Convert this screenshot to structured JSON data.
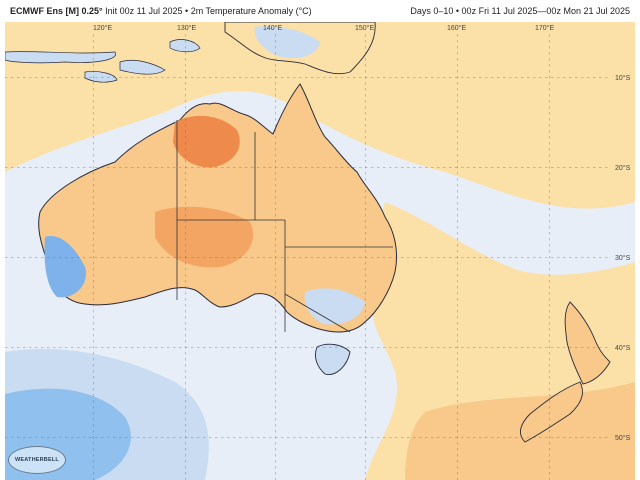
{
  "header": {
    "model": "ECMWF Ens [M] 0.25°",
    "init": "Init 00z 11 Jul 2025",
    "field": "2m Temperature Anomaly (°C)",
    "range": "Days 0–10 • 00z Fri 11 Jul 2025—00z Mon 21 Jul 2025"
  },
  "map": {
    "lon_labels": [
      "120°E",
      "130°E",
      "140°E",
      "150°E",
      "160°E",
      "170°E"
    ],
    "lat_labels": [
      "10°S",
      "20°S",
      "30°S",
      "40°S",
      "50°S"
    ],
    "colors": {
      "background": "#e8eef8",
      "warm_light": "#fbe0a8",
      "warm": "#f8c98a",
      "hot": "#f3a563",
      "very_hot": "#ee8a4b",
      "cool": "#c9dcf2",
      "cold": "#8fc0ee",
      "colder": "#7fb2ea",
      "coast": "#2a2a3a",
      "border": "#333333"
    }
  },
  "logo": {
    "text": "WEATHERBELL"
  }
}
